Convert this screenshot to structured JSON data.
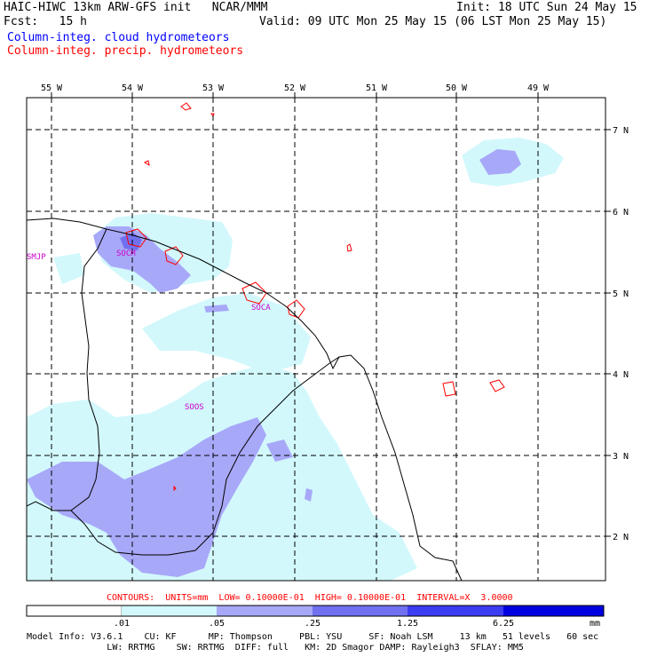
{
  "header": {
    "line1_left": "HAIC-HIWC 13km ARW-GFS init   NCAR/MMM",
    "line1_right": "Init: 18 UTC Sun 24 May 15",
    "line2_left": "Fcst:   15 h",
    "line2_right": "Valid: 09 UTC Mon 25 May 15 (06 LST Mon 25 May 15)",
    "cloud_field": "Column-integ. cloud hydrometeors",
    "precip_field": "Column-integ. precip. hydrometeors",
    "cloud_color": "#0000ff",
    "precip_color": "#ff0000"
  },
  "map": {
    "lon_labels": [
      "55 W",
      "54 W",
      "53 W",
      "52 W",
      "51 W",
      "50 W",
      "49 W"
    ],
    "lat_labels": [
      "7 N",
      "6 N",
      "5 N",
      "4 N",
      "3 N",
      "2 N"
    ],
    "stations": [
      {
        "id": "SMJP"
      },
      {
        "id": "SOCM"
      },
      {
        "id": "SOCA"
      },
      {
        "id": "SOOS"
      }
    ],
    "station_color": "#cc00cc",
    "fill_colors": {
      "light": "#d2f8fc",
      "medium": "#a8a8f8",
      "dark": "#7070f0"
    },
    "coast_color": "#000000"
  },
  "footer": {
    "contours": "CONTOURS:  UNITS=mm  LOW= 0.10000E-01  HIGH= 0.10000E-01  INTERVAL=X  3.0000",
    "colorbar_labels": [
      ".01",
      ".05",
      ".25",
      "1.25",
      "6.25"
    ],
    "colorbar_units": "mm",
    "colorbar_colors": [
      "#ffffff",
      "#d2f8fc",
      "#a8a8f8",
      "#7070f0",
      "#3c3cf0",
      "#0000e0"
    ],
    "model_line1": "Model Info: V3.6.1    CU: KF      MP: Thompson     PBL: YSU     SF: Noah LSM     13 km   51 levels   60 sec",
    "model_line2": "               LW: RRTMG    SW: RRTMG  DIFF: full   KM: 2D Smagor DAMP: Rayleigh3  SFLAY: MM5"
  }
}
